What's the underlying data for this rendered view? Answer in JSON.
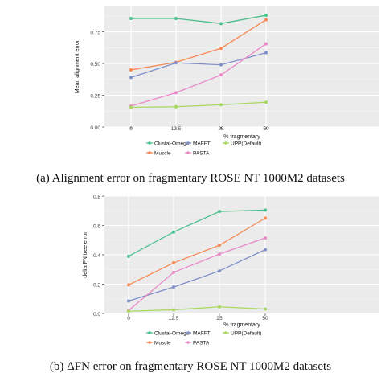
{
  "figure": {
    "caption_a": "(a) Alignment error on fragmentary ROSE NT 1000M2 datasets",
    "caption_b": "(b) ΔFN error on fragmentary ROSE NT 1000M2 datasets"
  },
  "chart_data": [
    {
      "type": "line",
      "xlabel": "% fragmentary",
      "ylabel": "Mean alignment error",
      "categories": [
        "0",
        "12.5",
        "25",
        "50"
      ],
      "ylim": [
        0,
        0.95
      ],
      "yticks": [
        "0.00",
        "0.25",
        "0.50",
        "0.75"
      ],
      "grid": true,
      "legend_position": "bottom",
      "series": [
        {
          "name": "Clustal-Omega",
          "color": "#4dbf8f",
          "values": [
            0.855,
            0.855,
            0.815,
            0.88
          ]
        },
        {
          "name": "Muscle",
          "color": "#f58a55",
          "values": [
            0.45,
            0.51,
            0.62,
            0.845
          ]
        },
        {
          "name": "MAFFT",
          "color": "#7f8fc8",
          "values": [
            0.39,
            0.505,
            0.49,
            0.585
          ]
        },
        {
          "name": "PASTA",
          "color": "#e88ac8",
          "values": [
            0.165,
            0.27,
            0.41,
            0.655
          ]
        },
        {
          "name": "UPP(Default)",
          "color": "#a9d861",
          "values": [
            0.155,
            0.16,
            0.175,
            0.195
          ]
        }
      ]
    },
    {
      "type": "line",
      "xlabel": "% fragmentary",
      "ylabel": "delta FN tree error",
      "categories": [
        "0",
        "12.5",
        "25",
        "50"
      ],
      "ylim": [
        0,
        0.8
      ],
      "yticks": [
        "0.0",
        "0.2",
        "0.4",
        "0.6",
        "0.8"
      ],
      "grid": true,
      "legend_position": "bottom",
      "series": [
        {
          "name": "Clustal-Omega",
          "color": "#4dbf8f",
          "values": [
            0.39,
            0.555,
            0.695,
            0.705
          ]
        },
        {
          "name": "Muscle",
          "color": "#f58a55",
          "values": [
            0.195,
            0.345,
            0.465,
            0.65
          ]
        },
        {
          "name": "MAFFT",
          "color": "#7f8fc8",
          "values": [
            0.085,
            0.18,
            0.29,
            0.435
          ]
        },
        {
          "name": "PASTA",
          "color": "#e88ac8",
          "values": [
            0.02,
            0.28,
            0.405,
            0.515
          ]
        },
        {
          "name": "UPP(Default)",
          "color": "#a9d861",
          "values": [
            0.015,
            0.025,
            0.045,
            0.03
          ]
        }
      ]
    }
  ]
}
